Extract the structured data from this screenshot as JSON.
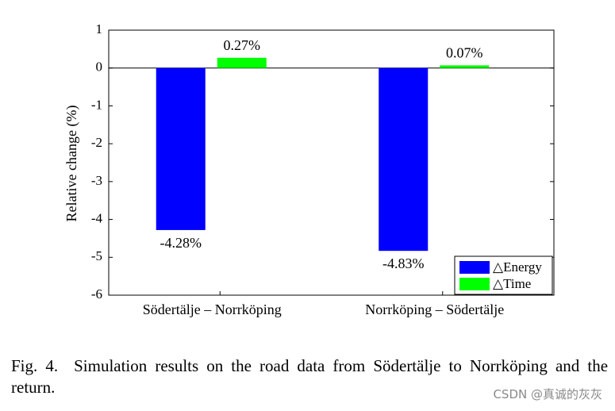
{
  "chart_data": {
    "type": "bar",
    "categories": [
      "Södertälje – Norrköping",
      "Norrköping – Södertälje"
    ],
    "series": [
      {
        "name": "△Energy",
        "values": [
          -4.28,
          -4.83
        ],
        "labels": [
          "-4.28%",
          "-4.83%"
        ],
        "color": "#0000ff"
      },
      {
        "name": "△Time",
        "values": [
          0.27,
          0.07
        ],
        "labels": [
          "0.27%",
          "0.07%"
        ],
        "color": "#00ff00"
      }
    ],
    "ylabel": "Relative change (%)",
    "ylim": [
      -6,
      1
    ],
    "yticks": [
      "1",
      "0",
      "-1",
      "-2",
      "-3",
      "-4",
      "-5",
      "-6"
    ],
    "legend_position": "bottom-right",
    "grid": false
  },
  "caption": {
    "figure_number": "Fig. 4.",
    "text": "Simulation results on the road data from Södertälje to Norrköping and the return."
  },
  "watermark": "CSDN @真诚的灰灰"
}
